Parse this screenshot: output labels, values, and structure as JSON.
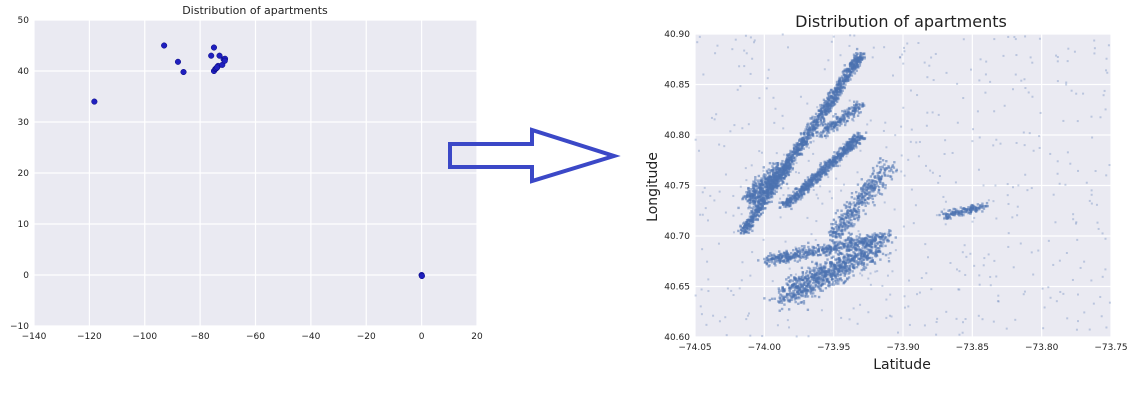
{
  "colors": {
    "panel_bg": "#eaeaf2",
    "grid": "#ffffff",
    "left_points": "#1f1fbf",
    "right_points": "#4c72b0",
    "arrow": "#3b48c7"
  },
  "arrow_icon": "right-arrow-outline",
  "chart_data": [
    {
      "type": "scatter",
      "title": "Distribution of apartments",
      "xlabel": "",
      "ylabel": "",
      "xlim": [
        -140,
        20
      ],
      "ylim": [
        -10,
        50
      ],
      "grid": true,
      "xticks": [
        -140,
        -120,
        -100,
        -80,
        -60,
        -40,
        -20,
        0,
        20
      ],
      "yticks": [
        -10,
        0,
        10,
        20,
        30,
        40,
        50
      ],
      "xtick_labels": [
        "−140",
        "−120",
        "−100",
        "−80",
        "−60",
        "−40",
        "−20",
        "0",
        "20"
      ],
      "ytick_labels": [
        "−10",
        "0",
        "10",
        "20",
        "30",
        "40",
        "50"
      ],
      "points": [
        [
          -118.2,
          34.0
        ],
        [
          -93.0,
          45.0
        ],
        [
          -88.0,
          41.8
        ],
        [
          -86.0,
          39.8
        ],
        [
          -76.0,
          43.0
        ],
        [
          -75.0,
          44.6
        ],
        [
          -73.8,
          40.8
        ],
        [
          -74.0,
          40.6
        ],
        [
          -73.5,
          41.0
        ],
        [
          -73.0,
          43.0
        ],
        [
          -72.0,
          41.2
        ],
        [
          -71.5,
          42.3
        ],
        [
          -71.0,
          42.4
        ],
        [
          -75.0,
          40.0
        ],
        [
          -74.5,
          40.4
        ],
        [
          -74.2,
          40.5
        ],
        [
          -71.1,
          42.0
        ],
        [
          -73.9,
          40.7
        ],
        [
          0.0,
          0.0
        ],
        [
          0.1,
          -0.2
        ]
      ]
    },
    {
      "type": "scatter",
      "title": "Distribution of apartments",
      "xlabel": "Latitude",
      "ylabel": "Longitude",
      "xlim": [
        -74.05,
        -73.75
      ],
      "ylim": [
        40.6,
        40.9
      ],
      "grid": true,
      "xticks": [
        -74.05,
        -74.0,
        -73.95,
        -73.9,
        -73.85,
        -73.8,
        -73.75
      ],
      "yticks": [
        40.6,
        40.65,
        40.7,
        40.75,
        40.8,
        40.85,
        40.9
      ],
      "xtick_labels": [
        "−74.05",
        "−74.00",
        "−73.95",
        "−73.90",
        "−73.85",
        "−73.80",
        "−73.75"
      ],
      "ytick_labels": [
        "40.60",
        "40.65",
        "40.70",
        "40.75",
        "40.80",
        "40.85",
        "40.90"
      ],
      "clusters": [
        {
          "x0": -74.015,
          "y0": 40.705,
          "x1": -73.93,
          "y1": 40.88,
          "width": 0.01,
          "n": 1300
        },
        {
          "x0": -73.985,
          "y0": 40.73,
          "x1": -73.93,
          "y1": 40.8,
          "width": 0.01,
          "n": 700
        },
        {
          "x0": -74.01,
          "y0": 40.735,
          "x1": -73.985,
          "y1": 40.77,
          "width": 0.02,
          "n": 500
        },
        {
          "x0": -73.985,
          "y0": 40.64,
          "x1": -73.92,
          "y1": 40.69,
          "width": 0.03,
          "n": 900
        },
        {
          "x0": -74.0,
          "y0": 40.675,
          "x1": -73.91,
          "y1": 40.7,
          "width": 0.015,
          "n": 500
        },
        {
          "x0": -73.95,
          "y0": 40.7,
          "x1": -73.91,
          "y1": 40.77,
          "width": 0.02,
          "n": 400
        },
        {
          "x0": -73.87,
          "y0": 40.72,
          "x1": -73.84,
          "y1": 40.73,
          "width": 0.01,
          "n": 150
        },
        {
          "x0": -73.96,
          "y0": 40.8,
          "x1": -73.93,
          "y1": 40.83,
          "width": 0.012,
          "n": 200
        }
      ],
      "scatter_n": 500
    }
  ]
}
